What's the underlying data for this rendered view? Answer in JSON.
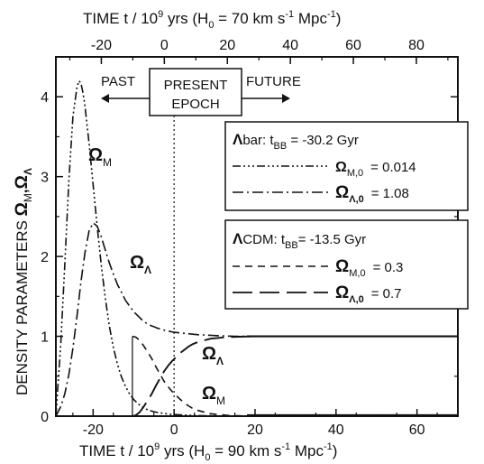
{
  "chart_data": {
    "type": "line",
    "top_axis": {
      "label_prefix": "TIME  t / 10",
      "label_exp": "9",
      "label_mid": " yrs  (H",
      "label_sub": "0",
      "label_tail": " =  70 km s",
      "label_unit_exp": "-1",
      "label_end": " Mpc",
      "label_end_exp": "-1",
      "label_close": ")",
      "ticks": [
        -20,
        0,
        20,
        40,
        60,
        80
      ],
      "xlim": [
        -34.43,
        93.17
      ]
    },
    "bottom_axis": {
      "label_prefix": "TIME  t / 10",
      "label_exp": "9",
      "label_mid": " yrs  (H",
      "label_sub": "0",
      "label_tail": " =  90 km s",
      "label_unit_exp": "-1",
      "label_end": " Mpc",
      "label_end_exp": "-1",
      "label_close": ")",
      "ticks": [
        -20,
        0,
        20,
        40,
        60
      ],
      "xlim": [
        -29.2,
        70.1
      ]
    },
    "y_axis": {
      "label_prefix": "DENSITY  PARAMETERS  ",
      "omega": "Ω",
      "sub_m": "M",
      "comma": ",",
      "sub_l": "Λ",
      "ticks": [
        0,
        1,
        2,
        3,
        4
      ],
      "ylim": [
        0,
        4.5
      ]
    },
    "annotations": {
      "past": "PAST",
      "present_line1": "PRESENT",
      "present_line2": "EPOCH",
      "future": "FUTURE"
    },
    "curve_labels": {
      "omega": "Ω",
      "m": "M",
      "l": "Λ"
    },
    "legend_lambdabar": {
      "title_sym": "Λ",
      "title_txt": "bar:  t",
      "title_sub": "BB",
      "title_val": " =  -30.2 Gyr",
      "omega_m_sub": "M,0",
      "omega_m_val": "=  0.014",
      "omega_l_sub": "Λ,0",
      "omega_l_val": "=  1.08"
    },
    "legend_lcdm": {
      "title_sym": "Λ",
      "title_txt": "CDM:  t",
      "title_sub": "BB",
      "title_val": "=  -13.5 Gyr",
      "omega_m_sub": "M,0",
      "omega_m_val": "=  0.3",
      "omega_l_sub": "Λ,0",
      "omega_l_val": "=  0.7"
    },
    "series": [
      {
        "name": "Λbar Ω_M",
        "style": "dash-dot-dot",
        "x": [
          -29.2,
          -28,
          -27,
          -26,
          -25,
          -24,
          -23.5,
          -23,
          -22.5,
          -22,
          -21,
          -20,
          -19,
          -18,
          -17,
          -16,
          -15,
          -14,
          -13,
          -12,
          -11,
          -10,
          -9,
          -8,
          -7,
          -6,
          -5,
          -4,
          -2,
          0,
          3,
          6,
          10,
          15,
          20,
          30,
          45,
          70.1
        ],
        "y": [
          0,
          0.9,
          1.9,
          2.95,
          3.75,
          4.12,
          4.2,
          4.17,
          4.05,
          3.88,
          3.42,
          2.9,
          2.38,
          1.9,
          1.48,
          1.13,
          0.86,
          0.65,
          0.49,
          0.37,
          0.28,
          0.21,
          0.16,
          0.12,
          0.09,
          0.07,
          0.055,
          0.045,
          0.03,
          0.02,
          0.012,
          0.007,
          0.004,
          0.002,
          0.001,
          0,
          0,
          0
        ]
      },
      {
        "name": "Λbar Ω_Λ",
        "style": "dash-dot",
        "x": [
          -29.2,
          -28,
          -27,
          -26,
          -25,
          -24,
          -23,
          -22,
          -21,
          -20,
          -19,
          -18,
          -17,
          -16,
          -15,
          -14,
          -13,
          -12,
          -11,
          -10,
          -9,
          -8,
          -7,
          -6,
          -5,
          -4,
          -3,
          -2,
          -1,
          0,
          2,
          4,
          6,
          8,
          10,
          15,
          20,
          30,
          45,
          70.1
        ],
        "y": [
          0,
          0.12,
          0.28,
          0.52,
          0.85,
          1.25,
          1.68,
          2.05,
          2.32,
          2.42,
          2.38,
          2.25,
          2.08,
          1.92,
          1.78,
          1.65,
          1.55,
          1.45,
          1.38,
          1.31,
          1.26,
          1.21,
          1.17,
          1.14,
          1.12,
          1.1,
          1.085,
          1.07,
          1.06,
          1.05,
          1.04,
          1.03,
          1.02,
          1.015,
          1.01,
          1.0,
          1.0,
          1.0,
          1.0,
          1.0
        ]
      },
      {
        "name": "ΛCDM Ω_M",
        "style": "short-dash",
        "x": [
          -10.3,
          -9.5,
          -8.5,
          -7.5,
          -6.5,
          -5.5,
          -4.5,
          -3.5,
          -2.5,
          -1.5,
          -0.5,
          0.5,
          1.5,
          2.5,
          3.5,
          4.5,
          6,
          7.5,
          9,
          11,
          13,
          16,
          20,
          30,
          45,
          70.1
        ],
        "y": [
          1.0,
          0.99,
          0.95,
          0.88,
          0.8,
          0.72,
          0.62,
          0.53,
          0.44,
          0.37,
          0.31,
          0.26,
          0.21,
          0.17,
          0.13,
          0.1,
          0.07,
          0.05,
          0.03,
          0.02,
          0.01,
          0.005,
          0,
          0,
          0,
          0
        ]
      },
      {
        "name": "ΛCDM Ω_Λ",
        "style": "long-dash",
        "x": [
          -10.3,
          -9.5,
          -8.5,
          -7.5,
          -6.5,
          -5.5,
          -4.5,
          -3.5,
          -2.5,
          -1.5,
          -0.5,
          0.5,
          1.5,
          2.5,
          3.5,
          4.5,
          6,
          7.5,
          9,
          11,
          13,
          16,
          20,
          30,
          45,
          70.1
        ],
        "y": [
          0,
          0.01,
          0.05,
          0.12,
          0.2,
          0.28,
          0.38,
          0.47,
          0.56,
          0.63,
          0.69,
          0.74,
          0.79,
          0.83,
          0.87,
          0.9,
          0.93,
          0.95,
          0.97,
          0.98,
          0.99,
          0.995,
          1.0,
          1.0,
          1.0,
          1.0
        ]
      }
    ],
    "grid": false,
    "reference_lines": {
      "present_epoch_x": 0,
      "lcdm_big_bang_x": -10.3
    },
    "colors": {
      "line": "#111111",
      "background": "#ffffff"
    }
  }
}
